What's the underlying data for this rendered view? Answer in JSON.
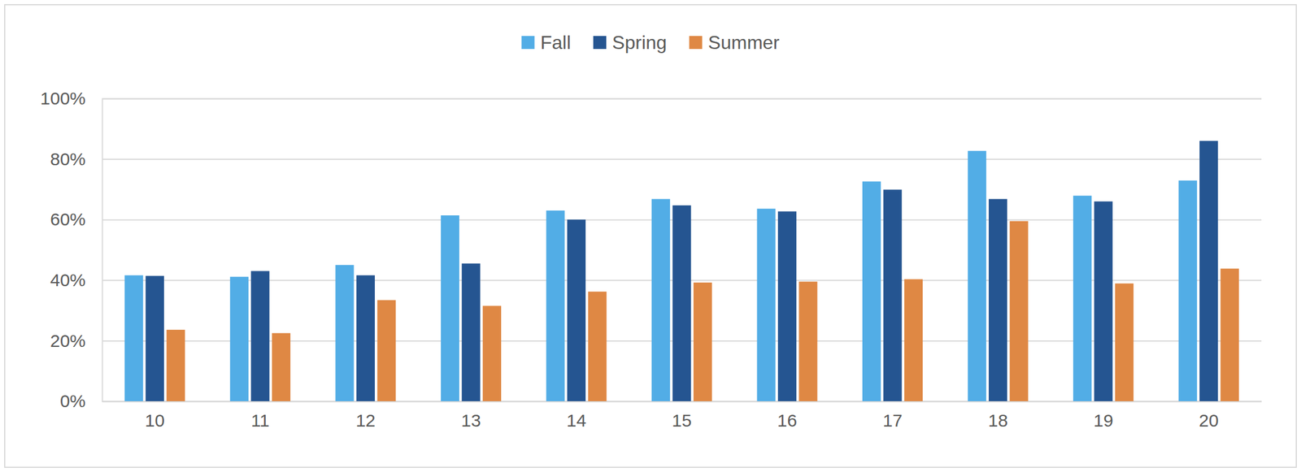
{
  "chart_data": {
    "type": "bar",
    "categories": [
      "10",
      "11",
      "12",
      "13",
      "14",
      "15",
      "16",
      "17",
      "18",
      "19",
      "20"
    ],
    "series": [
      {
        "name": "Fall",
        "color": "#52ade6",
        "values": [
          41.6,
          41.1,
          45.0,
          61.4,
          63.0,
          66.8,
          63.6,
          72.6,
          82.7,
          67.9,
          72.9
        ]
      },
      {
        "name": "Spring",
        "color": "#255591",
        "values": [
          41.4,
          43.0,
          41.6,
          45.5,
          60.0,
          64.7,
          62.7,
          69.9,
          66.8,
          66.0,
          86.0
        ]
      },
      {
        "name": "Summer",
        "color": "#df8844",
        "values": [
          23.6,
          22.5,
          33.4,
          31.5,
          36.2,
          39.2,
          39.5,
          40.3,
          59.5,
          38.9,
          43.8
        ]
      }
    ],
    "ylim": [
      0,
      100
    ],
    "yticks": [
      {
        "value": 0,
        "label": "0%"
      },
      {
        "value": 20,
        "label": "20%"
      },
      {
        "value": 40,
        "label": "40%"
      },
      {
        "value": 60,
        "label": "60%"
      },
      {
        "value": 80,
        "label": "80%"
      },
      {
        "value": 100,
        "label": "100%"
      }
    ],
    "grid": true,
    "legend": "top"
  }
}
